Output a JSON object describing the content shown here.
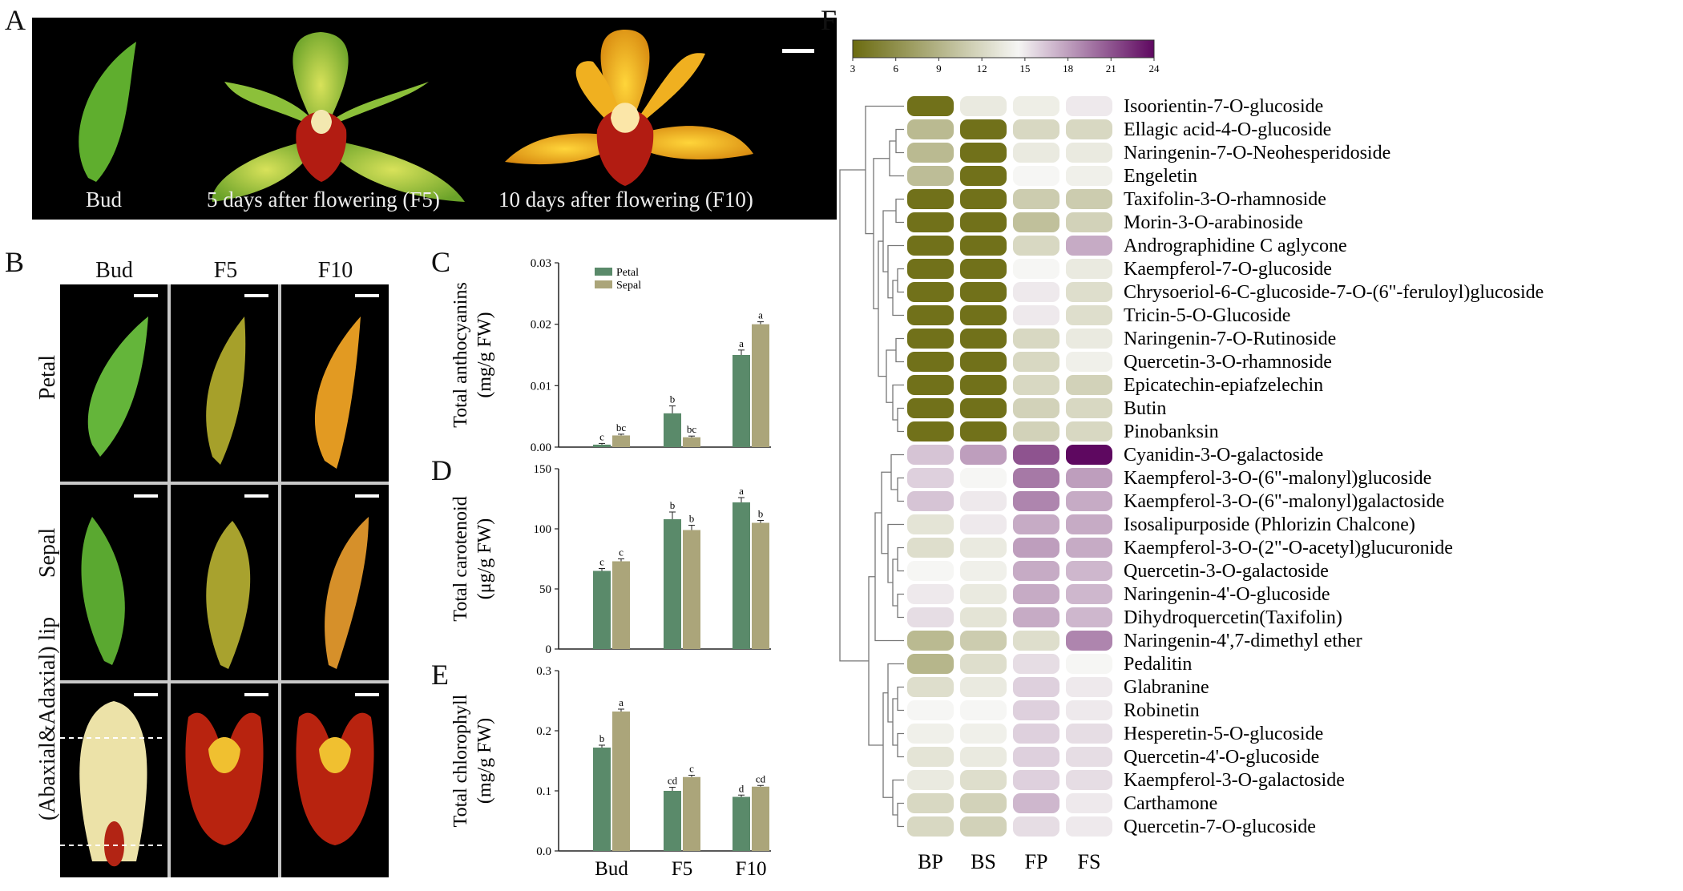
{
  "panel_A": {
    "letter": "A",
    "captions": [
      "Bud",
      "5 days after flowering (F5)",
      "10 days after flowering (F10)"
    ]
  },
  "panel_B": {
    "letter": "B",
    "col_headers": [
      "Bud",
      "F5",
      "F10"
    ],
    "row_labels": [
      "Petal",
      "Sepal",
      "(Abaxial&Adaxial) lip"
    ]
  },
  "chart_data": [
    {
      "panel": "C",
      "type": "bar",
      "categories": [
        "Bud",
        "F5",
        "F10"
      ],
      "series": [
        {
          "name": "Petal",
          "color": "#5a8a6a",
          "values": [
            0.0004,
            0.0055,
            0.015
          ],
          "errors": [
            0.0002,
            0.0012,
            0.0008
          ],
          "letters": [
            "c",
            "b",
            "a"
          ]
        },
        {
          "name": "Sepal",
          "color": "#aba57a",
          "values": [
            0.0019,
            0.0016,
            0.02
          ],
          "errors": [
            0.0002,
            0.0002,
            0.0004
          ],
          "letters": [
            "bc",
            "bc",
            "a"
          ]
        }
      ],
      "ylabel": "Total anthocyanins (mg/g FW)",
      "ylim": [
        0,
        0.03
      ],
      "yticks": [
        "0.00",
        "0.01",
        "0.02",
        "0.03"
      ],
      "legend_position": "top-left"
    },
    {
      "panel": "D",
      "type": "bar",
      "categories": [
        "Bud",
        "F5",
        "F10"
      ],
      "series": [
        {
          "name": "Petal",
          "color": "#5a8a6a",
          "values": [
            65,
            108,
            122
          ],
          "errors": [
            2,
            6,
            4
          ],
          "letters": [
            "c",
            "b",
            "a"
          ]
        },
        {
          "name": "Sepal",
          "color": "#aba57a",
          "values": [
            73,
            99,
            105
          ],
          "errors": [
            2,
            4,
            2
          ],
          "letters": [
            "c",
            "b",
            "b"
          ]
        }
      ],
      "ylabel": "Total carotenoid (μg/g FW)",
      "ylim": [
        0,
        150
      ],
      "yticks": [
        "0",
        "50",
        "100",
        "150"
      ]
    },
    {
      "panel": "E",
      "type": "bar",
      "categories": [
        "Bud",
        "F5",
        "F10"
      ],
      "series": [
        {
          "name": "Petal",
          "color": "#5a8a6a",
          "values": [
            0.172,
            0.1,
            0.09
          ],
          "errors": [
            0.004,
            0.006,
            0.003
          ],
          "letters": [
            "b",
            "cd",
            "d"
          ]
        },
        {
          "name": "Sepal",
          "color": "#aba57a",
          "values": [
            0.232,
            0.123,
            0.107
          ],
          "errors": [
            0.004,
            0.003,
            0.002
          ],
          "letters": [
            "a",
            "c",
            "cd"
          ]
        }
      ],
      "ylabel": "Total chlorophyll (mg/g FW)",
      "ylim": [
        0,
        0.3
      ],
      "yticks": [
        "0.0",
        "0.1",
        "0.2",
        "0.3"
      ]
    },
    {
      "panel": "F",
      "type": "heatmap",
      "columns": [
        "BP",
        "BS",
        "FP",
        "FS"
      ],
      "colorbar": {
        "ticks": [
          "3",
          "6",
          "9",
          "12",
          "15",
          "18",
          "21",
          "24"
        ],
        "min": 3,
        "max": 24,
        "low_color": "#6b6b10",
        "mid_color": "#f6f6f4",
        "high_color": "#5e0860"
      },
      "rows": [
        {
          "label": "Isoorientin-7-O-glucoside",
          "values": [
            3.5,
            13.5,
            13.8,
            15
          ]
        },
        {
          "label": "Ellagic acid-4-O-glucoside",
          "values": [
            9.5,
            3.5,
            12,
            12
          ]
        },
        {
          "label": "Naringenin-7-O-Neohesperidoside",
          "values": [
            9.5,
            3.5,
            13.5,
            13.5
          ]
        },
        {
          "label": "Engeletin",
          "values": [
            9.8,
            3.5,
            14.5,
            14
          ]
        },
        {
          "label": "Taxifolin-3-O-rhamnoside",
          "values": [
            3.5,
            3.5,
            11,
            11
          ]
        },
        {
          "label": "Morin-3-O-arabinoside",
          "values": [
            3.5,
            3.5,
            10,
            11.5
          ]
        },
        {
          "label": "Andrographidine C aglycone",
          "values": [
            3.5,
            3.5,
            12,
            17.5
          ]
        },
        {
          "label": "Kaempferol-7-O-glucoside",
          "values": [
            3.5,
            3.5,
            14.5,
            13.5
          ]
        },
        {
          "label": "Chrysoeriol-6-C-glucoside-7-O-(6\"-feruloyl)glucoside",
          "values": [
            3.5,
            3.5,
            15,
            12.5
          ]
        },
        {
          "label": "Tricin-5-O-Glucoside",
          "values": [
            3.5,
            3.5,
            15,
            12.5
          ]
        },
        {
          "label": "Naringenin-7-O-Rutinoside",
          "values": [
            3.5,
            3.5,
            12,
            13.5
          ]
        },
        {
          "label": "Quercetin-3-O-rhamnoside",
          "values": [
            3.5,
            3.5,
            12,
            14
          ]
        },
        {
          "label": "Epicatechin-epiafzelechin",
          "values": [
            3.5,
            3.5,
            12,
            11.5
          ]
        },
        {
          "label": "Butin",
          "values": [
            3.5,
            3.5,
            11.5,
            12
          ]
        },
        {
          "label": "Pinobanksin",
          "values": [
            3.5,
            3.5,
            11.5,
            12
          ]
        },
        {
          "label": "Cyanidin-3-O-galactoside",
          "values": [
            16.5,
            18,
            21,
            24
          ]
        },
        {
          "label": "Kaempferol-3-O-(6\"-malonyl)glucoside",
          "values": [
            16,
            14.5,
            19.5,
            18
          ]
        },
        {
          "label": "Kaempferol-3-O-(6\"-malonyl)galactoside",
          "values": [
            16.5,
            15,
            19,
            17.5
          ]
        },
        {
          "label": "Isosalipurposide (Phlorizin Chalcone)",
          "values": [
            13,
            15,
            17.5,
            17.5
          ]
        },
        {
          "label": "Kaempferol-3-O-(2\"-O-acetyl)glucuronide",
          "values": [
            12.5,
            13.5,
            18,
            17.5
          ]
        },
        {
          "label": "Quercetin-3-O-galactoside",
          "values": [
            14.5,
            14,
            17.5,
            17
          ]
        },
        {
          "label": "Naringenin-4'-O-glucoside",
          "values": [
            15,
            13.5,
            17.5,
            17
          ]
        },
        {
          "label": "Dihydroquercetin(Taxifolin)",
          "values": [
            15.5,
            13,
            17.5,
            17
          ]
        },
        {
          "label": "Naringenin-4',7-dimethyl ether",
          "values": [
            9.5,
            11,
            12.5,
            19
          ]
        },
        {
          "label": "Pedalitin",
          "values": [
            9.2,
            12.5,
            15.5,
            14.5
          ]
        },
        {
          "label": "Glabranine",
          "values": [
            12.5,
            13.5,
            16,
            15
          ]
        },
        {
          "label": "Robinetin",
          "values": [
            14.5,
            14.5,
            16,
            15
          ]
        },
        {
          "label": "Hesperetin-5-O-glucoside",
          "values": [
            14,
            14,
            16,
            15.5
          ]
        },
        {
          "label": "Quercetin-4'-O-glucoside",
          "values": [
            13,
            13.5,
            16,
            15.5
          ]
        },
        {
          "label": "Kaempferol-3-O-galactoside",
          "values": [
            13.5,
            12.5,
            16,
            15.5
          ]
        },
        {
          "label": "Carthamone",
          "values": [
            12,
            11.5,
            17,
            15
          ]
        },
        {
          "label": "Quercetin-7-O-glucoside",
          "values": [
            12,
            11.5,
            15.5,
            15
          ]
        }
      ]
    }
  ]
}
